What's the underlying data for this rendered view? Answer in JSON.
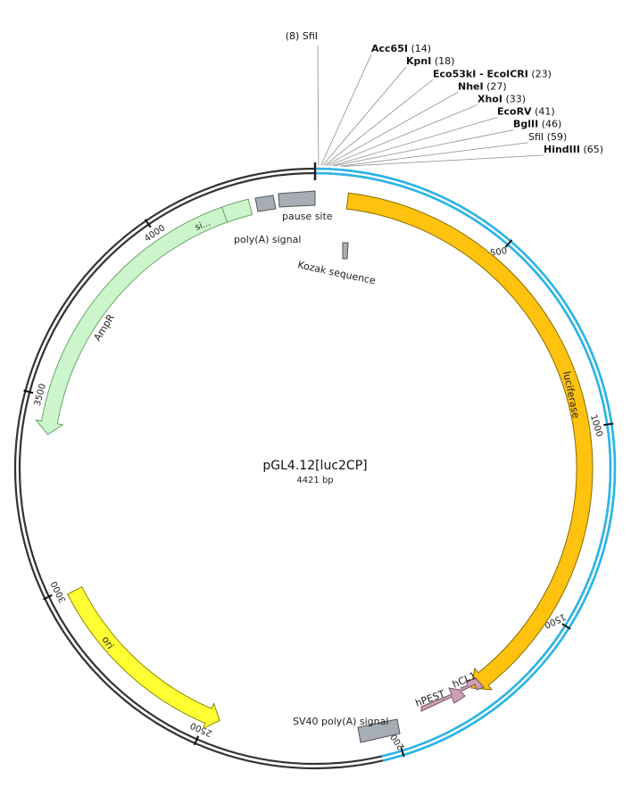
{
  "map": {
    "title": "pGL4.12[luc2CP]",
    "size_label": "4421 bp",
    "total_bp": 4421,
    "colors": {
      "backbone": "#333333",
      "insert": "#29b5e8",
      "luciferase": "#ffc20e",
      "ampr": "#ccf5cc",
      "ori": "#ffff33",
      "hpest": "#c9a0b4",
      "gray_feature": "#a6adb4"
    }
  },
  "ticks": [
    {
      "bp": 500,
      "label": "500"
    },
    {
      "bp": 1000,
      "label": "1000"
    },
    {
      "bp": 1500,
      "label": "1500"
    },
    {
      "bp": 2000,
      "label": "2000"
    },
    {
      "bp": 2500,
      "label": "2500"
    },
    {
      "bp": 3000,
      "label": "3000"
    },
    {
      "bp": 3500,
      "label": "3500"
    },
    {
      "bp": 4000,
      "label": "4000"
    }
  ],
  "sites": [
    {
      "name": "SfiI",
      "pos": "(8)",
      "bold": false,
      "pos_first": true
    },
    {
      "name": "Acc65I",
      "pos": "(14)",
      "bold": true
    },
    {
      "name": "KpnI",
      "pos": "(18)",
      "bold": true
    },
    {
      "name": "Eco53kI - EcoICRI",
      "pos": "(23)",
      "bold": true
    },
    {
      "name": "NheI",
      "pos": "(27)",
      "bold": true
    },
    {
      "name": "XhoI",
      "pos": "(33)",
      "bold": true
    },
    {
      "name": "EcoRV",
      "pos": "(41)",
      "bold": true
    },
    {
      "name": "BglII",
      "pos": "(46)",
      "bold": true
    },
    {
      "name": "SfiI",
      "pos": "(59)",
      "bold": false
    },
    {
      "name": "HindIII",
      "pos": "(65)",
      "bold": true
    }
  ],
  "features": {
    "luciferase": "luciferase",
    "ampr": "AmpR",
    "ori": "ori",
    "signal_short": "si...",
    "hpest": "hPEST",
    "hcl1": "hCL1",
    "pause_site": "pause site",
    "polya_signal": "poly(A) signal",
    "kozak": "Kozak sequence",
    "sv40": "SV40 poly(A) signal"
  }
}
